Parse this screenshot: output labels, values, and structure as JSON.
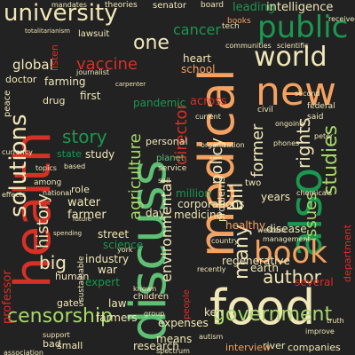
{
  "palette": {
    "background": "#222222",
    "red": "#d73027",
    "orange": "#f4a261",
    "pale_yellow": "#f1e8b8",
    "light_green": "#a6d96a",
    "green": "#5fbf74",
    "dark_green": "#1a9850"
  },
  "words": [
    {
      "text": "university",
      "color": "pale_yellow",
      "orient": "h"
    },
    {
      "text": "public",
      "color": "dark_green",
      "orient": "h"
    },
    {
      "text": "world",
      "color": "pale_yellow",
      "orient": "h"
    },
    {
      "text": "new",
      "color": "orange",
      "orient": "h"
    },
    {
      "text": "health",
      "color": "red",
      "orient": "v"
    },
    {
      "text": "medical",
      "color": "orange",
      "orient": "v"
    },
    {
      "text": "discuss",
      "color": "green",
      "orient": "v"
    },
    {
      "text": "also",
      "color": "dark_green",
      "orient": "v"
    },
    {
      "text": "food",
      "color": "pale_yellow",
      "orient": "h"
    },
    {
      "text": "book",
      "color": "orange",
      "orient": "h"
    },
    {
      "text": "solutions",
      "color": "pale_yellow",
      "orient": "v"
    },
    {
      "text": "one",
      "color": "pale_yellow",
      "orient": "h"
    },
    {
      "text": "global",
      "color": "pale_yellow",
      "orient": "h"
    },
    {
      "text": "vaccine",
      "color": "red",
      "orient": "h"
    },
    {
      "text": "cancer",
      "color": "dark_green",
      "orient": "h"
    },
    {
      "text": "story",
      "color": "dark_green",
      "orient": "h"
    },
    {
      "text": "history",
      "color": "pale_yellow",
      "orient": "v"
    },
    {
      "text": "big",
      "color": "pale_yellow",
      "orient": "h"
    },
    {
      "text": "agriculture",
      "color": "light_green",
      "orient": "v"
    },
    {
      "text": "policy",
      "color": "pale_yellow",
      "orient": "v"
    },
    {
      "text": "bill",
      "color": "pale_yellow",
      "orient": "v"
    },
    {
      "text": "former",
      "color": "pale_yellow",
      "orient": "v"
    },
    {
      "text": "rights",
      "color": "pale_yellow",
      "orient": "v"
    },
    {
      "text": "studies",
      "color": "light_green",
      "orient": "v"
    },
    {
      "text": "issues",
      "color": "light_green",
      "orient": "v"
    },
    {
      "text": "author",
      "color": "pale_yellow",
      "orient": "h"
    },
    {
      "text": "many",
      "color": "pale_yellow",
      "orient": "v"
    },
    {
      "text": "censorship",
      "color": "light_green",
      "orient": "h"
    },
    {
      "text": "government",
      "color": "light_green",
      "orient": "h"
    },
    {
      "text": "director",
      "color": "red",
      "orient": "v"
    },
    {
      "text": "environmental",
      "color": "pale_yellow",
      "orient": "v"
    },
    {
      "text": "water",
      "color": "pale_yellow",
      "orient": "h"
    },
    {
      "text": "farmer",
      "color": "pale_yellow",
      "orient": "h"
    },
    {
      "text": "farming",
      "color": "pale_yellow",
      "orient": "h"
    },
    {
      "text": "drug",
      "color": "pale_yellow",
      "orient": "h"
    },
    {
      "text": "first",
      "color": "pale_yellow",
      "orient": "h"
    },
    {
      "text": "study",
      "color": "pale_yellow",
      "orient": "h"
    },
    {
      "text": "state",
      "color": "dark_green",
      "orient": "h"
    },
    {
      "text": "leading",
      "color": "dark_green",
      "orient": "h"
    },
    {
      "text": "intelligence",
      "color": "pale_yellow",
      "orient": "h"
    },
    {
      "text": "heart",
      "color": "pale_yellow",
      "orient": "h"
    },
    {
      "text": "school",
      "color": "orange",
      "orient": "h"
    },
    {
      "text": "pandemic",
      "color": "dark_green",
      "orient": "h"
    },
    {
      "text": "across",
      "color": "red",
      "orient": "h"
    },
    {
      "text": "million",
      "color": "dark_green",
      "orient": "h"
    },
    {
      "text": "day",
      "color": "pale_yellow",
      "orient": "h"
    },
    {
      "text": "corporations",
      "color": "pale_yellow",
      "orient": "h"
    },
    {
      "text": "medicine",
      "color": "pale_yellow",
      "orient": "h"
    },
    {
      "text": "disease",
      "color": "pale_yellow",
      "orient": "h"
    },
    {
      "text": "healthy",
      "color": "orange",
      "orient": "h"
    },
    {
      "text": "years",
      "color": "pale_yellow",
      "orient": "h"
    },
    {
      "text": "industry",
      "color": "pale_yellow",
      "orient": "h"
    },
    {
      "text": "street",
      "color": "pale_yellow",
      "orient": "h"
    },
    {
      "text": "science",
      "color": "dark_green",
      "orient": "h"
    },
    {
      "text": "war",
      "color": "pale_yellow",
      "orient": "h"
    },
    {
      "text": "human",
      "color": "pale_yellow",
      "orient": "h"
    },
    {
      "text": "expert",
      "color": "dark_green",
      "orient": "h"
    },
    {
      "text": "earth",
      "color": "pale_yellow",
      "orient": "h"
    },
    {
      "text": "regenerative",
      "color": "pale_yellow",
      "orient": "h"
    },
    {
      "text": "law",
      "color": "pale_yellow",
      "orient": "h"
    },
    {
      "text": "farmers",
      "color": "pale_yellow",
      "orient": "h"
    },
    {
      "text": "expenses",
      "color": "pale_yellow",
      "orient": "h"
    },
    {
      "text": "means",
      "color": "pale_yellow",
      "orient": "h"
    },
    {
      "text": "research",
      "color": "pale_yellow",
      "orient": "h"
    },
    {
      "text": "ken",
      "color": "pale_yellow",
      "orient": "h"
    },
    {
      "text": "professor",
      "color": "red",
      "orient": "v"
    },
    {
      "text": "gates",
      "color": "pale_yellow",
      "orient": "h"
    },
    {
      "text": "bad",
      "color": "pale_yellow",
      "orient": "h"
    },
    {
      "text": "small",
      "color": "pale_yellow",
      "orient": "h"
    },
    {
      "text": "river",
      "color": "pale_yellow",
      "orient": "h"
    },
    {
      "text": "companies",
      "color": "pale_yellow",
      "orient": "h"
    },
    {
      "text": "interview",
      "color": "orange",
      "orient": "h"
    },
    {
      "text": "peace",
      "color": "pale_yellow",
      "orient": "v"
    },
    {
      "text": "doctor",
      "color": "pale_yellow",
      "orient": "h"
    },
    {
      "text": "listen",
      "color": "red",
      "orient": "v"
    },
    {
      "text": "senator",
      "color": "pale_yellow",
      "orient": "h"
    },
    {
      "text": "lawsuit",
      "color": "pale_yellow",
      "orient": "h"
    },
    {
      "text": "theories",
      "color": "pale_yellow",
      "orient": "h"
    },
    {
      "text": "tech",
      "color": "pale_yellow",
      "orient": "h"
    },
    {
      "text": "board",
      "color": "pale_yellow",
      "orient": "h"
    },
    {
      "text": "books",
      "color": "orange",
      "orient": "h"
    },
    {
      "text": "communities",
      "color": "pale_yellow",
      "orient": "h"
    },
    {
      "text": "scientific",
      "color": "pale_yellow",
      "orient": "h"
    },
    {
      "text": "journalist",
      "color": "pale_yellow",
      "orient": "h"
    },
    {
      "text": "role",
      "color": "pale_yellow",
      "orient": "h"
    },
    {
      "text": "personal",
      "color": "pale_yellow",
      "orient": "h"
    },
    {
      "text": "organization",
      "color": "pale_yellow",
      "orient": "h"
    },
    {
      "text": "chemicals",
      "color": "pale_yellow",
      "orient": "h"
    },
    {
      "text": "phones",
      "color": "pale_yellow",
      "orient": "h"
    },
    {
      "text": "management",
      "color": "pale_yellow",
      "orient": "h"
    },
    {
      "text": "several",
      "color": "red",
      "orient": "h"
    },
    {
      "text": "department",
      "color": "red",
      "orient": "v"
    },
    {
      "text": "planet",
      "color": "green",
      "orient": "h"
    },
    {
      "text": "service",
      "color": "pale_yellow",
      "orient": "h"
    },
    {
      "text": "children",
      "color": "pale_yellow",
      "orient": "h"
    },
    {
      "text": "sustainable",
      "color": "pale_yellow",
      "orient": "v"
    },
    {
      "text": "soil",
      "color": "pale_yellow",
      "orient": "h"
    },
    {
      "text": "based",
      "color": "pale_yellow",
      "orient": "h"
    },
    {
      "text": "topics",
      "color": "pale_yellow",
      "orient": "h"
    },
    {
      "text": "national",
      "color": "pale_yellow",
      "orient": "h"
    },
    {
      "text": "effects",
      "color": "pale_yellow",
      "orient": "h"
    },
    {
      "text": "among",
      "color": "pale_yellow",
      "orient": "h"
    },
    {
      "text": "second",
      "color": "pale_yellow",
      "orient": "h"
    },
    {
      "text": "federal",
      "color": "pale_yellow",
      "orient": "h"
    },
    {
      "text": "civil",
      "color": "pale_yellow",
      "orient": "h"
    },
    {
      "text": "current",
      "color": "pale_yellow",
      "orient": "h"
    },
    {
      "text": "received",
      "color": "pale_yellow",
      "orient": "h"
    },
    {
      "text": "said",
      "color": "pale_yellow",
      "orient": "h"
    },
    {
      "text": "ongoing",
      "color": "pale_yellow",
      "orient": "h"
    },
    {
      "text": "western",
      "color": "pale_yellow",
      "orient": "h"
    },
    {
      "text": "country",
      "color": "pale_yellow",
      "orient": "h"
    },
    {
      "text": "york",
      "color": "pale_yellow",
      "orient": "h"
    },
    {
      "text": "spectrum",
      "color": "pale_yellow",
      "orient": "h"
    },
    {
      "text": "autism",
      "color": "pale_yellow",
      "orient": "h"
    },
    {
      "text": "truth",
      "color": "pale_yellow",
      "orient": "h"
    },
    {
      "text": "improve",
      "color": "pale_yellow",
      "orient": "h"
    },
    {
      "text": "recently",
      "color": "pale_yellow",
      "orient": "h"
    },
    {
      "text": "support",
      "color": "pale_yellow",
      "orient": "h"
    },
    {
      "text": "association",
      "color": "pale_yellow",
      "orient": "h"
    },
    {
      "text": "group",
      "color": "pale_yellow",
      "orient": "h"
    },
    {
      "text": "known",
      "color": "pale_yellow",
      "orient": "h"
    },
    {
      "text": "problems",
      "color": "pale_yellow",
      "orient": "v"
    },
    {
      "text": "two",
      "color": "pale_yellow",
      "orient": "h"
    },
    {
      "text": "people",
      "color": "red",
      "orient": "v"
    },
    {
      "text": "mandates",
      "color": "pale_yellow",
      "orient": "h"
    },
    {
      "text": "totalitarianism",
      "color": "pale_yellow",
      "orient": "h"
    },
    {
      "text": "carpenter",
      "color": "pale_yellow",
      "orient": "h"
    },
    {
      "text": "currency",
      "color": "pale_yellow",
      "orient": "h"
    },
    {
      "text": "future",
      "color": "pale_yellow",
      "orient": "h"
    },
    {
      "text": "peter",
      "color": "pale_yellow",
      "orient": "h"
    },
    {
      "text": "spending",
      "color": "pale_yellow",
      "orient": "h"
    }
  ]
}
